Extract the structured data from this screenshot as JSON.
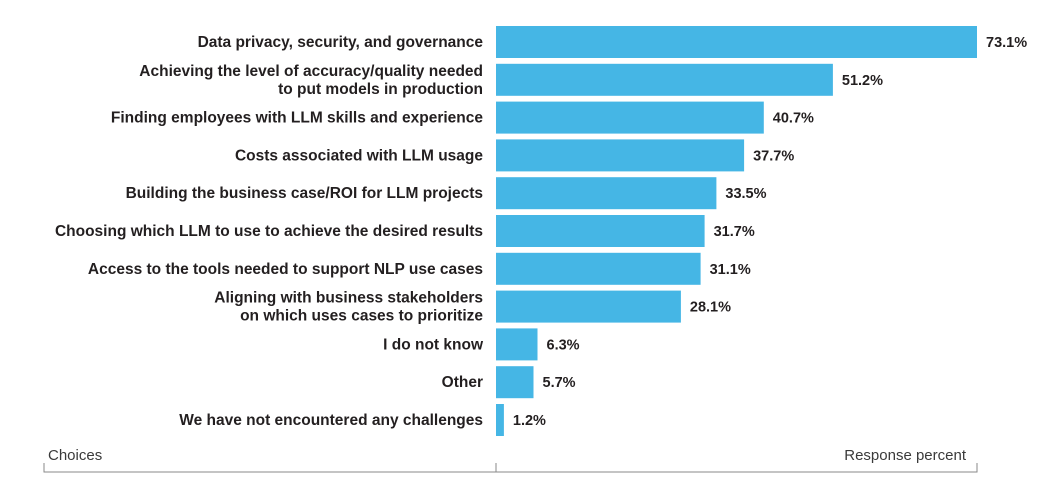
{
  "chart_data": {
    "type": "bar",
    "orientation": "horizontal",
    "categories": [
      [
        "Data privacy, security, and governance"
      ],
      [
        "Achieving the level of accuracy/quality needed",
        "to put models in production"
      ],
      [
        "Finding employees with LLM skills and experience"
      ],
      [
        "Costs associated with LLM usage"
      ],
      [
        "Building the business case/ROI for LLM projects"
      ],
      [
        "Choosing which LLM to use to achieve the desired results"
      ],
      [
        "Access to the tools needed to support NLP use cases"
      ],
      [
        "Aligning with business stakeholders",
        "on which uses cases to prioritize"
      ],
      [
        "I do not know"
      ],
      [
        "Other"
      ],
      [
        "We have not encountered any challenges"
      ]
    ],
    "values": [
      73.1,
      51.2,
      40.7,
      37.7,
      33.5,
      31.7,
      31.1,
      28.1,
      6.3,
      5.7,
      1.2
    ],
    "value_labels": [
      "73.1%",
      "51.2%",
      "40.7%",
      "37.7%",
      "33.5%",
      "31.7%",
      "31.1%",
      "28.1%",
      "6.3%",
      "5.7%",
      "1.2%"
    ],
    "xlim": [
      0,
      73.1
    ],
    "left_caption": "Choices",
    "right_caption": "Response percent",
    "bar_color": "#45b6e5",
    "text_color": "#231f20"
  }
}
